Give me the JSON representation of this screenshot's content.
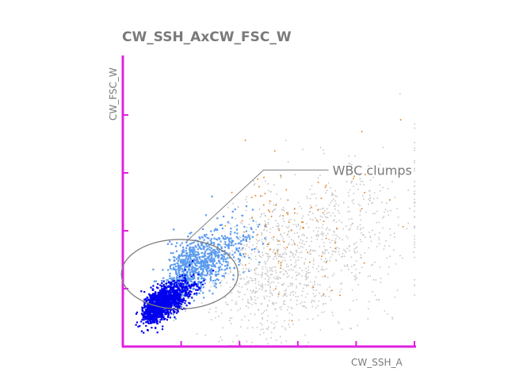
{
  "chart_data": {
    "type": "scatter",
    "title": "CW_SSH_AxCW_FSC_W",
    "xlabel": "CW_SSH_A",
    "ylabel": "CW_FSC_W",
    "xlim": [
      0,
      1000
    ],
    "ylim": [
      0,
      1000
    ],
    "grid": false,
    "axis_color": "#e020e0",
    "x_ticks": [
      200,
      400,
      600,
      800,
      1000
    ],
    "y_ticks": [
      200,
      400,
      600,
      800
    ],
    "populations": [
      {
        "color": "#0000ee",
        "center": [
          110,
          140
        ],
        "spread": [
          55,
          45
        ],
        "count": 1400
      },
      {
        "color": "#5b9bee",
        "center": [
          220,
          270
        ],
        "spread": [
          95,
          70
        ],
        "count": 900
      },
      {
        "color": "#c8c8c8",
        "center": [
          500,
          300
        ],
        "spread": [
          250,
          130
        ],
        "count": 1200
      },
      {
        "color": "#e07a10",
        "center": [
          500,
          420
        ],
        "spread": [
          180,
          130
        ],
        "count": 90
      }
    ],
    "gate": {
      "label": "WBC clumps",
      "center": [
        195,
        250
      ],
      "radius": [
        200,
        120
      ]
    },
    "annotation": {
      "text": "WBC clumps",
      "at": [
        700,
        610
      ]
    }
  }
}
